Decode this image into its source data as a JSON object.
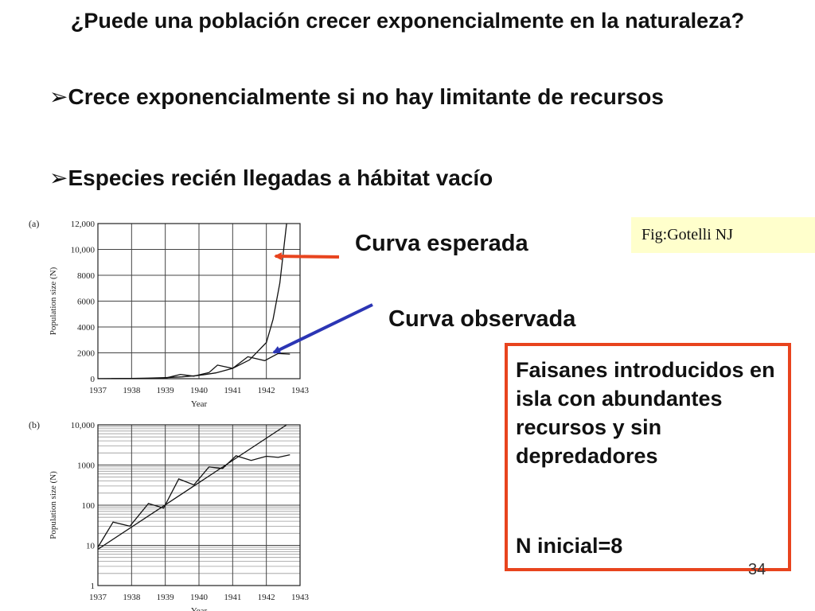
{
  "title": "¿Puede una población crecer exponencialmente en la naturaleza?",
  "bullets": [
    {
      "marker": "➢",
      "text": "Crece exponencialmente si no hay limitante de recursos"
    },
    {
      "marker": "➢",
      "text": "Especies recién llegadas a hábitat vacío"
    }
  ],
  "labels": {
    "expected": "Curva esperada",
    "observed": "Curva observada"
  },
  "figure_credit": "Fig:Gotelli NJ",
  "info_box": {
    "description": "Faisanes introducidos en isla con abundantes recursos y sin depredadores",
    "initial": "N inicial=8"
  },
  "page_number": "34",
  "colors": {
    "arrow_red": "#e8441e",
    "arrow_blue": "#2b35b4",
    "box_border": "#e8441e",
    "credit_bg": "#ffffcc"
  },
  "chart_data": [
    {
      "panel": "(a)",
      "type": "line",
      "xlabel": "Year",
      "ylabel": "Population size (N)",
      "x_ticks": [
        "1937",
        "1938",
        "1939",
        "1940",
        "1941",
        "1942",
        "1943"
      ],
      "y_ticks": [
        "0",
        "2000",
        "4000",
        "6000",
        "8000",
        "10,000",
        "12,000"
      ],
      "xlim": [
        1937,
        1943
      ],
      "ylim": [
        0,
        12000
      ],
      "grid": true,
      "scale": "linear",
      "series": [
        {
          "role": "expected",
          "x": [
            1937.0,
            1937.5,
            1938.0,
            1938.5,
            1939.0,
            1939.5,
            1940.0,
            1940.5,
            1941.0,
            1941.5,
            1942.0,
            1942.2,
            1942.4,
            1942.6
          ],
          "y": [
            8,
            14,
            25,
            44,
            78,
            140,
            250,
            450,
            800,
            1450,
            2800,
            4600,
            7400,
            12000
          ]
        },
        {
          "role": "observed",
          "x": [
            1937.4,
            1938.4,
            1939.0,
            1939.45,
            1939.85,
            1940.3,
            1940.55,
            1941.0,
            1941.45,
            1941.95,
            1942.35,
            1942.7
          ],
          "y": [
            8,
            25,
            40,
            330,
            200,
            480,
            1050,
            800,
            1700,
            1400,
            1950,
            1900
          ]
        }
      ]
    },
    {
      "panel": "(b)",
      "type": "line",
      "xlabel": "Year",
      "ylabel": "Population size (N)",
      "x_ticks": [
        "1937",
        "1938",
        "1939",
        "1940",
        "1941",
        "1942",
        "1943"
      ],
      "y_ticks": [
        "1",
        "10",
        "100",
        "1000",
        "10,000"
      ],
      "xlim": [
        1937,
        1943
      ],
      "ylim": [
        1,
        10000
      ],
      "grid": true,
      "scale": "log",
      "series": [
        {
          "role": "expected",
          "x": [
            1937.0,
            1942.6
          ],
          "y": [
            8,
            10000
          ]
        },
        {
          "role": "observed",
          "x": [
            1937.0,
            1937.45,
            1937.95,
            1938.5,
            1938.95,
            1939.4,
            1939.85,
            1940.3,
            1940.7,
            1941.1,
            1941.55,
            1942.0,
            1942.35,
            1942.7
          ],
          "y": [
            9,
            38,
            30,
            110,
            85,
            450,
            320,
            900,
            820,
            1700,
            1300,
            1650,
            1550,
            1800
          ]
        }
      ]
    }
  ]
}
